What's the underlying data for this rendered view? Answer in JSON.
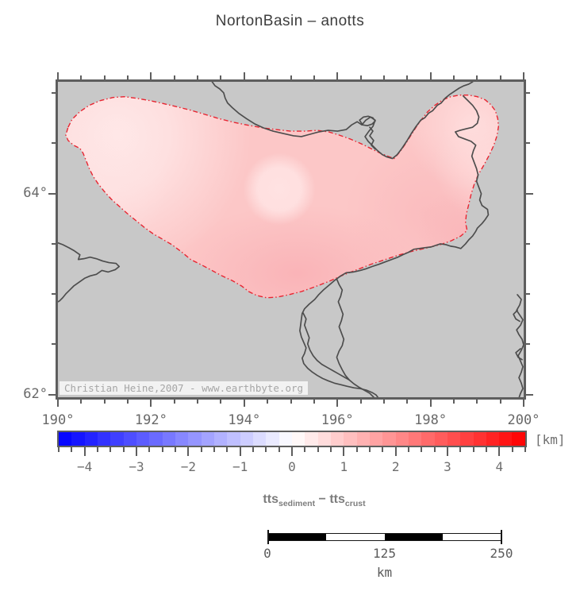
{
  "title": "NortonBasin – anotts",
  "map": {
    "watermark": "Christian Heine,2007 - www.earthbyte.org",
    "x_axis": {
      "lon_min": 190,
      "lon_max": 200,
      "tick_step": 0.5,
      "major_step": 2,
      "labels": [
        {
          "lon": 190,
          "text": "190°"
        },
        {
          "lon": 192,
          "text": "192°"
        },
        {
          "lon": 194,
          "text": "194°"
        },
        {
          "lon": 196,
          "text": "196°"
        },
        {
          "lon": 198,
          "text": "198°"
        },
        {
          "lon": 200,
          "text": "200°"
        }
      ]
    },
    "y_axis": {
      "lat_top": 65.11,
      "lat_min": 62,
      "lat_max": 65,
      "tick_step": 0.5,
      "major_step": 2,
      "labels": [
        {
          "lat": 64,
          "text": "64°"
        },
        {
          "lat": 62,
          "text": "62°"
        }
      ]
    }
  },
  "colorbar": {
    "min": -4.5,
    "max": 4.5,
    "block_step": 0.25,
    "tick_step": 0.25,
    "major_step": 1,
    "unit": "[km]",
    "labels": [
      {
        "v": -4,
        "text": "−4"
      },
      {
        "v": -3,
        "text": "−3"
      },
      {
        "v": -2,
        "text": "−2"
      },
      {
        "v": -1,
        "text": "−1"
      },
      {
        "v": 0,
        "text": "0"
      },
      {
        "v": 1,
        "text": "1"
      },
      {
        "v": 2,
        "text": "2"
      },
      {
        "v": 3,
        "text": "3"
      },
      {
        "v": 4,
        "text": "4"
      }
    ]
  },
  "variable_label": {
    "term1": "tts",
    "sub1": "sediment",
    "operator": " − ",
    "term2": "tts",
    "sub2": "crust"
  },
  "scalebar": {
    "length_km": 250,
    "segments": [
      {
        "from": 0,
        "to": 62.5,
        "fill": "#000000"
      },
      {
        "from": 62.5,
        "to": 125,
        "fill": "#ffffff"
      },
      {
        "from": 125,
        "to": 187.5,
        "fill": "#000000"
      },
      {
        "from": 187.5,
        "to": 250,
        "fill": "#ffffff"
      }
    ],
    "labels": [
      {
        "km": 0,
        "text": "0"
      },
      {
        "km": 125,
        "text": "125"
      },
      {
        "km": 250,
        "text": "250"
      }
    ],
    "unit": "km"
  },
  "colors": {
    "land_gray": "#c8c8c8",
    "frame_gray": "#5e5e5e",
    "coastline_gray": "#4d4d4d",
    "basin_pink": "#fcc7c7",
    "basin_outline_red": "#e82430",
    "colorbar_blue_end": "#0707ff",
    "colorbar_red_end": "#ff0707"
  },
  "chart_data": {
    "type": "map",
    "title": "NortonBasin – anotts",
    "region": {
      "lon_range": [
        190,
        200
      ],
      "lat_range": [
        62,
        65.1
      ]
    },
    "colorbar": {
      "quantity": "tts_sediment − tts_crust",
      "unit": "km",
      "range": [
        -4.5,
        4.5
      ],
      "labeled_ticks": [
        -4,
        -3,
        -2,
        -1,
        0,
        1,
        2,
        3,
        4
      ],
      "palette": "blue-white-red"
    },
    "basin_fill_values_km": "approx 0.25 to 1.5 (pink shades) inside basin outline",
    "scalebar_km": [
      0,
      125,
      250
    ]
  }
}
